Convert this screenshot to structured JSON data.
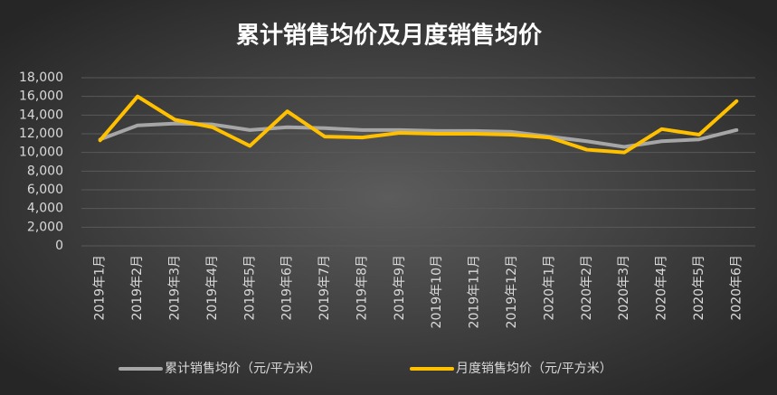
{
  "chart_data": {
    "type": "line",
    "title": "累计销售均价及月度销售均价",
    "categories": [
      "2019年1月",
      "2019年2月",
      "2019年3月",
      "2019年4月",
      "2019年5月",
      "2019年6月",
      "2019年7月",
      "2019年8月",
      "2019年9月",
      "2019年10月",
      "2019年11月",
      "2019年12月",
      "2020年1月",
      "2020年2月",
      "2020年3月",
      "2020年4月",
      "2020年5月",
      "2020年6月"
    ],
    "series": [
      {
        "name": "累计销售均价（元/平方米）",
        "color": "#a6a6a6",
        "values": [
          11400,
          12900,
          13100,
          13000,
          12400,
          12700,
          12600,
          12400,
          12400,
          12300,
          12300,
          12200,
          11700,
          11200,
          10600,
          11200,
          11400,
          12400
        ]
      },
      {
        "name": "月度销售均价（元/平方米）",
        "color": "#ffc000",
        "values": [
          11300,
          16000,
          13500,
          12700,
          10700,
          14400,
          11700,
          11600,
          12100,
          12000,
          12000,
          11900,
          11600,
          10300,
          10000,
          12500,
          11900,
          15500
        ]
      }
    ],
    "ylim": [
      0,
      18000
    ],
    "yticks": [
      0,
      {
        "value": 2000,
        "label": "2,000"
      },
      {
        "value": 4000,
        "label": "4,000"
      },
      {
        "value": 6000,
        "label": "6,000"
      },
      {
        "value": 8000,
        "label": "8,000"
      },
      {
        "value": 10000,
        "label": "10,000"
      },
      {
        "value": 12000,
        "label": "12,000"
      },
      {
        "value": 14000,
        "label": "14,000"
      },
      {
        "value": 16000,
        "label": "16,000"
      },
      {
        "value": 18000,
        "label": "18,000"
      }
    ],
    "grid": true,
    "legend": "bottom"
  }
}
